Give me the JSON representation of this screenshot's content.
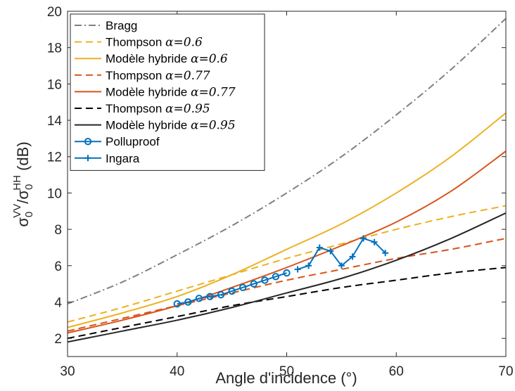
{
  "chart_data": {
    "type": "line",
    "xlabel": "Angle d'incidence (°)",
    "ylabel": {
      "base": "σ",
      "sub": "0",
      "sup1": "VV",
      "slash": "/",
      "base2": "σ",
      "sub2": "0",
      "sup2": "HH",
      "unit": " (dB)"
    },
    "xlim": [
      30,
      70
    ],
    "ylim": [
      1,
      20
    ],
    "xticks": [
      30,
      40,
      50,
      60,
      70
    ],
    "yticks": [
      2,
      4,
      6,
      8,
      10,
      12,
      14,
      16,
      18,
      20
    ],
    "grid": false,
    "legend_position": "top-left",
    "series": [
      {
        "name": "Bragg",
        "alpha": "",
        "color": "#808080",
        "style": "dashdot",
        "marker": "none",
        "x": [
          30,
          35,
          40,
          45,
          50,
          55,
          60,
          65,
          70
        ],
        "y": [
          3.9,
          5.1,
          6.6,
          8.2,
          10.0,
          12.0,
          14.3,
          16.8,
          19.6
        ]
      },
      {
        "name": "Thompson ",
        "alpha": "α=0.6",
        "color": "#EDB120",
        "style": "dashed",
        "marker": "none",
        "x": [
          30,
          35,
          40,
          45,
          50,
          55,
          60,
          65,
          70
        ],
        "y": [
          2.9,
          3.7,
          4.6,
          5.5,
          6.4,
          7.2,
          8.0,
          8.7,
          9.3
        ]
      },
      {
        "name": "Modèle hybride ",
        "alpha": "α=0.6",
        "color": "#EDB120",
        "style": "solid",
        "marker": "none",
        "x": [
          30,
          35,
          40,
          45,
          50,
          55,
          60,
          65,
          70
        ],
        "y": [
          2.6,
          3.4,
          4.3,
          5.5,
          6.9,
          8.3,
          10.0,
          12.0,
          14.4
        ]
      },
      {
        "name": "Thompson ",
        "alpha": "α=0.77",
        "color": "#D95319",
        "style": "dashed",
        "marker": "none",
        "x": [
          30,
          35,
          40,
          45,
          50,
          55,
          60,
          65,
          70
        ],
        "y": [
          2.4,
          3.1,
          3.8,
          4.5,
          5.2,
          5.8,
          6.4,
          6.9,
          7.5
        ]
      },
      {
        "name": "Modèle hybride ",
        "alpha": "α=0.77",
        "color": "#D95319",
        "style": "solid",
        "marker": "none",
        "x": [
          30,
          35,
          40,
          45,
          50,
          55,
          60,
          65,
          70
        ],
        "y": [
          2.3,
          3.0,
          3.8,
          4.8,
          5.9,
          7.1,
          8.4,
          10.1,
          12.3
        ]
      },
      {
        "name": "Thompson ",
        "alpha": "α=0.95",
        "color": "#000000",
        "style": "dashed",
        "marker": "none",
        "x": [
          30,
          35,
          40,
          45,
          50,
          55,
          60,
          65,
          70
        ],
        "y": [
          2.0,
          2.6,
          3.2,
          3.8,
          4.3,
          4.8,
          5.2,
          5.6,
          5.9
        ]
      },
      {
        "name": "Modèle hybride ",
        "alpha": "α=0.95",
        "color": "#262626",
        "style": "solid",
        "marker": "none",
        "x": [
          30,
          35,
          40,
          45,
          50,
          55,
          60,
          65,
          70
        ],
        "y": [
          1.8,
          2.4,
          3.0,
          3.7,
          4.5,
          5.3,
          6.3,
          7.5,
          8.9
        ]
      },
      {
        "name": "Polluproof",
        "alpha": "",
        "color": "#0072BD",
        "style": "solid",
        "marker": "circle",
        "x": [
          40,
          41,
          42,
          43,
          44,
          45,
          46,
          47,
          48,
          49,
          50
        ],
        "y": [
          3.9,
          4.0,
          4.2,
          4.3,
          4.4,
          4.6,
          4.8,
          5.0,
          5.2,
          5.4,
          5.6
        ]
      },
      {
        "name": "Ingara",
        "alpha": "",
        "color": "#0072BD",
        "style": "solid",
        "marker": "plus",
        "x": [
          51,
          52,
          53,
          54,
          55,
          56,
          57,
          58,
          59
        ],
        "y": [
          5.8,
          6.0,
          7.0,
          6.8,
          6.0,
          6.5,
          7.5,
          7.3,
          6.7
        ]
      }
    ]
  }
}
